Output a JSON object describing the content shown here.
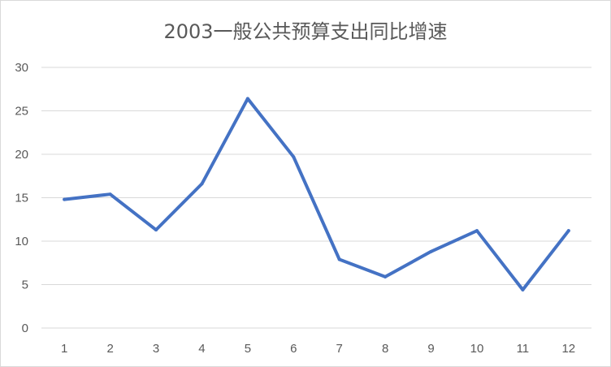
{
  "chart_data": {
    "type": "line",
    "title": "2003一般公共预算支出同比增速",
    "xlabel": "",
    "ylabel": "",
    "categories": [
      "1",
      "2",
      "3",
      "4",
      "5",
      "6",
      "7",
      "8",
      "9",
      "10",
      "11",
      "12"
    ],
    "series": [
      {
        "values": [
          14.8,
          15.4,
          11.3,
          16.6,
          26.4,
          19.7,
          7.9,
          5.9,
          8.8,
          11.2,
          4.4,
          11.2
        ]
      }
    ],
    "ylim": [
      0,
      30
    ],
    "yticks": [
      "0",
      "5",
      "10",
      "15",
      "20",
      "25",
      "30"
    ],
    "grid": true,
    "legend": "none",
    "colors": {
      "line": "#4472c4",
      "grid": "#d9d9d9",
      "text": "#595959"
    }
  }
}
